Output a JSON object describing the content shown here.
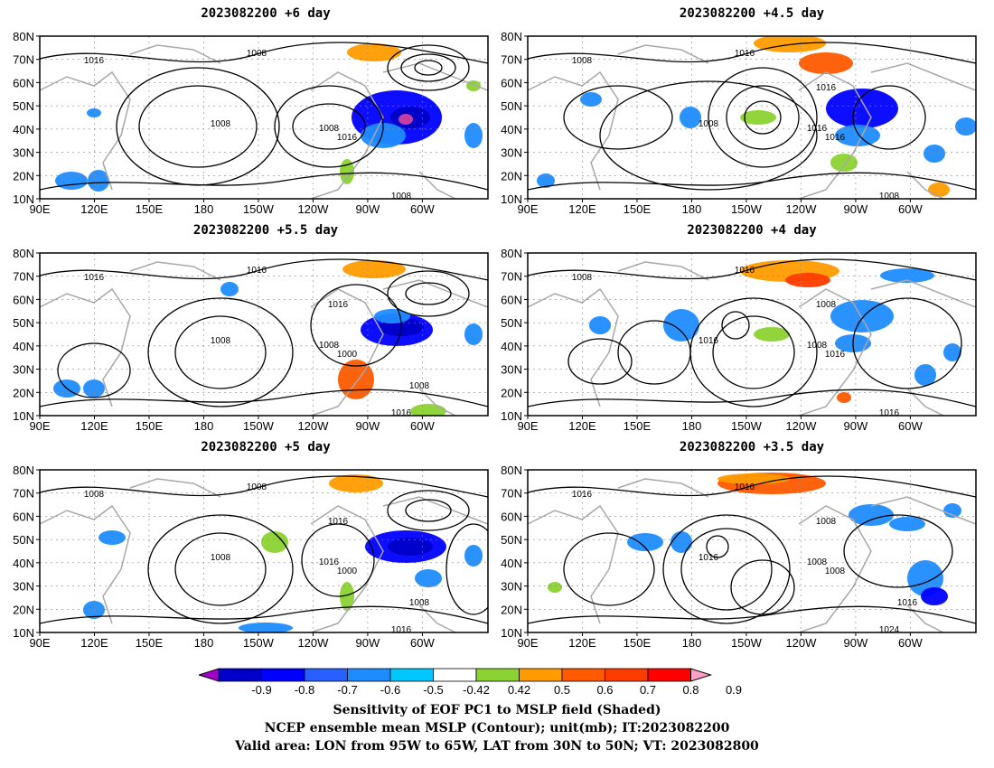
{
  "panels": [
    {
      "title": "2023082200 +6 day",
      "contour_labels": [
        "1008",
        "1008",
        "1016",
        "1016",
        "1008",
        "1008"
      ]
    },
    {
      "title": "2023082200 +4.5 day",
      "contour_labels": [
        "1008",
        "1016",
        "1008",
        "1016",
        "1008",
        "1016",
        "1016"
      ]
    },
    {
      "title": "2023082200 +5.5 day",
      "contour_labels": [
        "1008",
        "1008",
        "1016",
        "1000",
        "1016",
        "1016",
        "1016",
        "1008"
      ]
    },
    {
      "title": "2023082200 +4 day",
      "contour_labels": [
        "1016",
        "1008",
        "1008",
        "1016",
        "1016",
        "1016",
        "1008"
      ]
    },
    {
      "title": "2023082200 +5 day",
      "contour_labels": [
        "1008",
        "1016",
        "1008",
        "1000",
        "1016",
        "1008",
        "1016",
        "1008"
      ]
    },
    {
      "title": "2023082200 +3.5 day",
      "contour_labels": [
        "1016",
        "1008",
        "1016",
        "1008",
        "1024",
        "1016",
        "1008",
        "1016"
      ]
    }
  ],
  "axes": {
    "lat_labels": [
      "80N",
      "70N",
      "60N",
      "50N",
      "40N",
      "30N",
      "20N",
      "10N"
    ],
    "lon_labels": [
      "90E",
      "120E",
      "150E",
      "180",
      "150W",
      "120W",
      "90W",
      "60W"
    ]
  },
  "colorbar": {
    "labels": [
      "-0.9",
      "-0.8",
      "-0.7",
      "-0.6",
      "-0.5",
      "-0.42",
      "0.42",
      "0.5",
      "0.6",
      "0.7",
      "0.8",
      "0.9"
    ],
    "colors": [
      "#a000c8",
      "#0000c8",
      "#0000ff",
      "#2860ff",
      "#1e8cff",
      "#00c8ff",
      "#ffffff",
      "#8cd232",
      "#ff9b00",
      "#ff5a00",
      "#ff3c00",
      "#ff0000",
      "#ffa0c8"
    ]
  },
  "caption": {
    "line1": "Sensitivity of EOF PC1 to MSLP field (Shaded)",
    "line2": "NCEP ensemble mean MSLP (Contour); unit(mb); IT:2023082200",
    "line3": "Valid area: LON from 95W to 65W, LAT from 30N to 50N; VT: 2023082800"
  }
}
